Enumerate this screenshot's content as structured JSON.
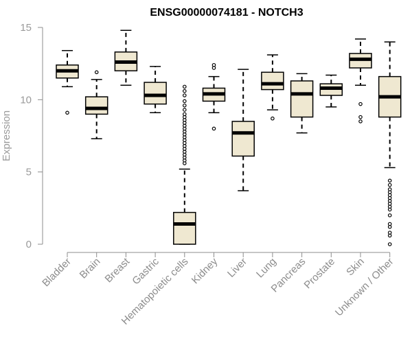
{
  "colors": {
    "box_fill": "#efe8d1",
    "box_stroke": "#000000",
    "axis": "#8c8c8c",
    "text": "#8c8c8c"
  },
  "chart_data": {
    "type": "boxplot",
    "title": "ENSG00000074181 - NOTCH3",
    "xlabel": "",
    "ylabel": "Expression",
    "ylim": [
      0,
      15
    ],
    "yticks": [
      0,
      5,
      10,
      15
    ],
    "grid": false,
    "categories": [
      "Bladder",
      "Brain",
      "Breast",
      "Gastric",
      "Hematopoietic cells",
      "Kidney",
      "Liver",
      "Lung",
      "Pancreas",
      "Prostate",
      "Skin",
      "Unknown / Other"
    ],
    "boxes": [
      {
        "min": 10.9,
        "q1": 11.5,
        "median": 12.0,
        "q3": 12.4,
        "max": 13.4,
        "outliers": [
          9.1
        ]
      },
      {
        "min": 7.3,
        "q1": 9.0,
        "median": 9.4,
        "q3": 10.2,
        "max": 11.4,
        "outliers": [
          11.9
        ]
      },
      {
        "min": 11.0,
        "q1": 12.0,
        "median": 12.6,
        "q3": 13.3,
        "max": 14.8,
        "outliers": []
      },
      {
        "min": 9.1,
        "q1": 9.7,
        "median": 10.3,
        "q3": 11.2,
        "max": 12.3,
        "outliers": []
      },
      {
        "min": 0.0,
        "q1": 0.0,
        "median": 1.4,
        "q3": 2.2,
        "max": 5.2,
        "outliers": [
          5.6,
          5.8,
          6.0,
          6.2,
          6.4,
          6.6,
          6.8,
          7.0,
          7.2,
          7.4,
          7.6,
          7.8,
          8.0,
          8.2,
          8.4,
          8.6,
          8.8,
          9.0,
          9.3,
          9.6,
          9.9,
          10.3,
          10.6,
          10.9
        ]
      },
      {
        "min": 9.1,
        "q1": 9.9,
        "median": 10.4,
        "q3": 10.8,
        "max": 11.6,
        "outliers": [
          8.0,
          12.2,
          12.4
        ]
      },
      {
        "min": 3.7,
        "q1": 6.1,
        "median": 7.7,
        "q3": 8.5,
        "max": 12.1,
        "outliers": []
      },
      {
        "min": 9.3,
        "q1": 10.7,
        "median": 11.1,
        "q3": 11.9,
        "max": 13.1,
        "outliers": [
          8.7
        ]
      },
      {
        "min": 7.7,
        "q1": 8.8,
        "median": 10.4,
        "q3": 11.3,
        "max": 11.8,
        "outliers": []
      },
      {
        "min": 9.5,
        "q1": 10.3,
        "median": 10.8,
        "q3": 11.1,
        "max": 11.7,
        "outliers": []
      },
      {
        "min": 11.0,
        "q1": 12.2,
        "median": 12.8,
        "q3": 13.2,
        "max": 14.2,
        "outliers": [
          8.5,
          8.8,
          9.7
        ]
      },
      {
        "min": 5.3,
        "q1": 8.8,
        "median": 10.2,
        "q3": 11.6,
        "max": 14.0,
        "outliers": [
          0.0,
          0.6,
          0.8,
          1.2,
          1.4,
          2.0,
          2.4,
          2.6,
          2.8,
          3.0,
          3.2,
          3.4,
          3.6,
          3.8,
          4.1,
          4.4
        ]
      }
    ]
  }
}
